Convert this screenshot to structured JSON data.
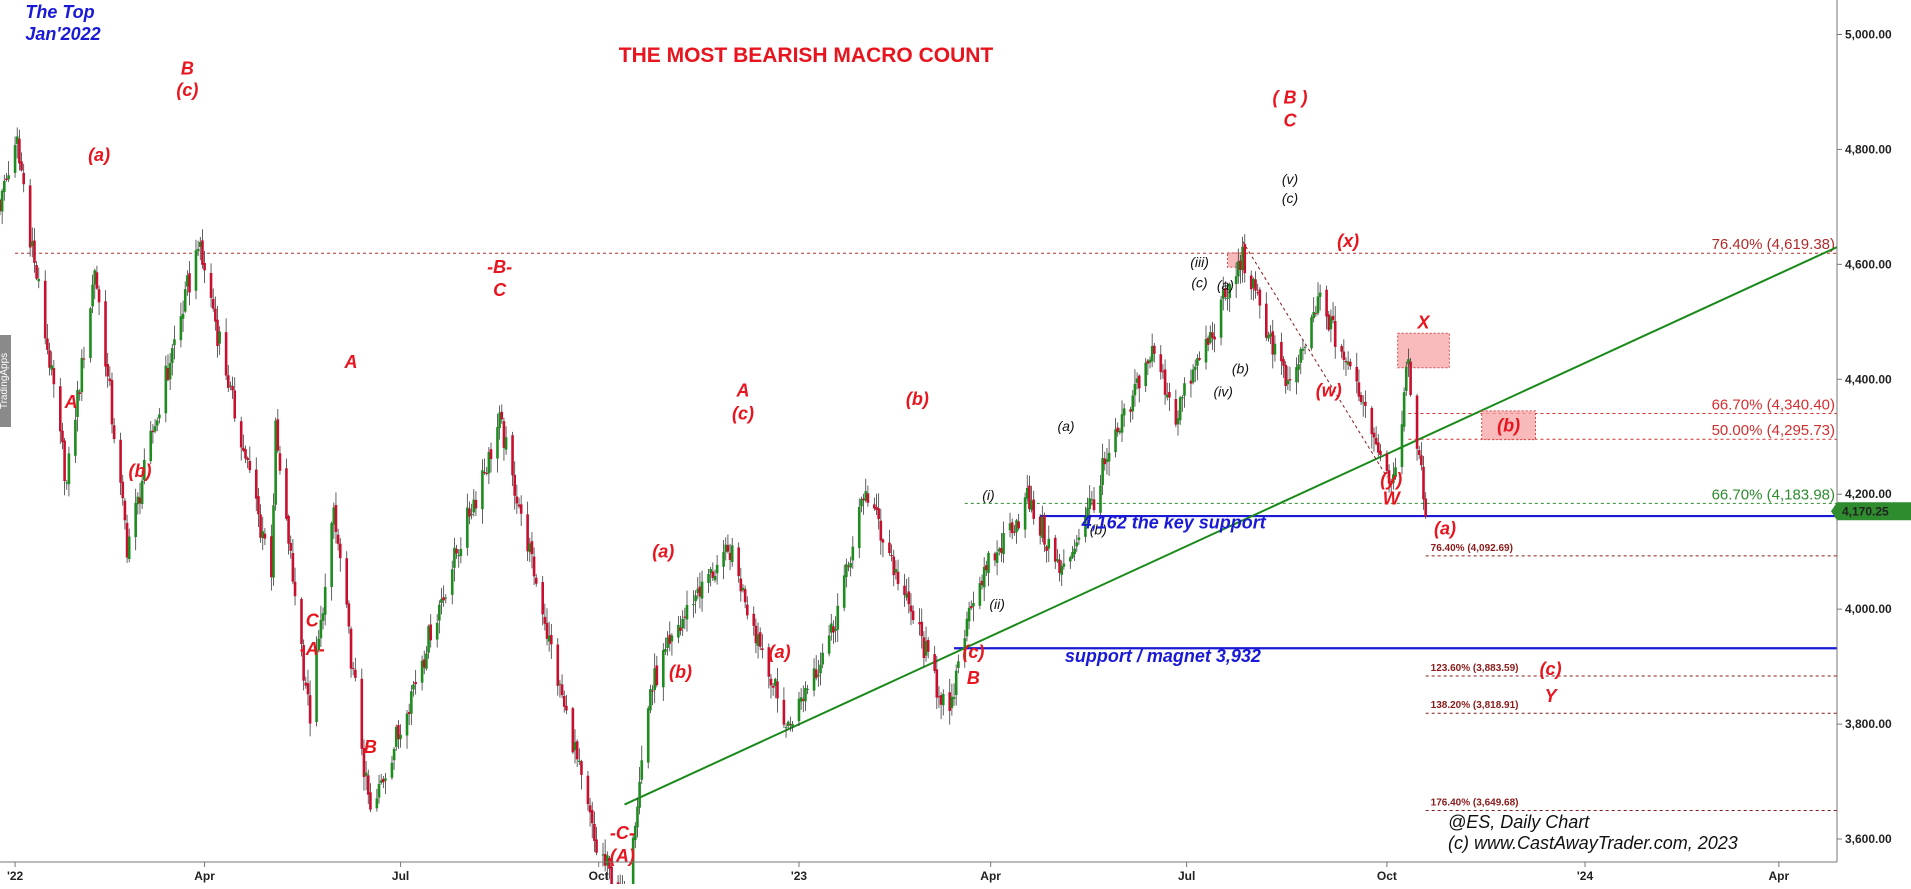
{
  "chart_data": {
    "type": "candlestick",
    "title": "THE MOST BEARISH MACRO COUNT",
    "instrument": "@ES",
    "timeframe_label": "@ES,  Daily Chart",
    "copyright": "(c) www.CastAwayTrader.com, 2023",
    "top_label": [
      "The Top",
      "Jan'2022"
    ],
    "y_axis": {
      "min": 3560,
      "max": 5060,
      "ticks": [
        "5,000.00",
        "4,800.00",
        "4,600.00",
        "4,400.00",
        "4,200.00",
        "4,000.00",
        "3,800.00",
        "3,600.00"
      ]
    },
    "x_axis": {
      "start": "2021-12-27",
      "end": "2024-04-28",
      "ticks": [
        {
          "date": "2022-01-03",
          "label": "'22"
        },
        {
          "date": "2022-04-01",
          "label": "Apr"
        },
        {
          "date": "2022-07-01",
          "label": "Jul"
        },
        {
          "date": "2022-10-01",
          "label": "Oct"
        },
        {
          "date": "2023-01-02",
          "label": "'23"
        },
        {
          "date": "2023-04-01",
          "label": "Apr"
        },
        {
          "date": "2023-07-01",
          "label": "Jul"
        },
        {
          "date": "2023-10-02",
          "label": "Oct"
        },
        {
          "date": "2024-01-02",
          "label": "'24"
        },
        {
          "date": "2024-04-01",
          "label": "Apr"
        }
      ]
    },
    "last_price": "4,170.25",
    "anchors": [
      [
        "2021-12-27",
        4750
      ],
      [
        "2022-01-04",
        4808
      ],
      [
        "2022-01-27",
        4280
      ],
      [
        "2022-02-09",
        4580
      ],
      [
        "2022-02-24",
        4100
      ],
      [
        "2022-03-29",
        4636
      ],
      [
        "2022-05-02",
        4120
      ],
      [
        "2022-05-04",
        4300
      ],
      [
        "2022-05-20",
        3830
      ],
      [
        "2022-05-31",
        4170
      ],
      [
        "2022-06-17",
        3640
      ],
      [
        "2022-08-16",
        4325
      ],
      [
        "2022-09-30",
        3590
      ],
      [
        "2022-10-13",
        3500
      ],
      [
        "2022-10-25",
        3890
      ],
      [
        "2022-11-15",
        4020
      ],
      [
        "2022-12-01",
        4100
      ],
      [
        "2022-12-28",
        3800
      ],
      [
        "2023-01-18",
        3970
      ],
      [
        "2023-02-02",
        4208
      ],
      [
        "2023-03-13",
        3808
      ],
      [
        "2023-03-22",
        4010
      ],
      [
        "2023-04-18",
        4190
      ],
      [
        "2023-05-04",
        4060
      ],
      [
        "2023-06-15",
        4460
      ],
      [
        "2023-06-26",
        4340
      ],
      [
        "2023-07-27",
        4610
      ],
      [
        "2023-08-18",
        4390
      ],
      [
        "2023-09-01",
        4550
      ],
      [
        "2023-09-21",
        4360
      ],
      [
        "2023-10-04",
        4220
      ],
      [
        "2023-10-12",
        4420
      ],
      [
        "2023-10-20",
        4170
      ]
    ],
    "overlay_anchors": [
      [
        "2021-12-27",
        4712
      ],
      [
        "2022-01-04",
        4808
      ],
      [
        "2022-01-27",
        4222
      ],
      [
        "2022-02-09",
        4595
      ],
      [
        "2022-02-24",
        4114
      ],
      [
        "2022-03-29",
        4637
      ],
      [
        "2022-05-02",
        4062
      ],
      [
        "2022-05-04",
        4303
      ],
      [
        "2022-05-20",
        3810
      ],
      [
        "2022-05-31",
        4170
      ],
      [
        "2022-06-17",
        3636
      ],
      [
        "2022-08-16",
        4325
      ],
      [
        "2022-09-30",
        3585
      ],
      [
        "2022-10-13",
        3491
      ],
      [
        "2022-10-25",
        3860
      ],
      [
        "2022-11-15",
        4028
      ],
      [
        "2022-12-01",
        4100
      ],
      [
        "2022-12-28",
        3790
      ],
      [
        "2023-01-18",
        3970
      ],
      [
        "2023-02-02",
        4208
      ],
      [
        "2023-03-13",
        3808
      ],
      [
        "2023-03-22",
        4010
      ],
      [
        "2023-04-18",
        4190
      ],
      [
        "2023-05-04",
        4060
      ],
      [
        "2023-06-15",
        4450
      ],
      [
        "2023-06-26",
        4340
      ],
      [
        "2023-07-27",
        4608
      ],
      [
        "2023-08-18",
        4380
      ],
      [
        "2023-09-01",
        4540
      ],
      [
        "2023-09-21",
        4360
      ],
      [
        "2023-10-04",
        4220
      ],
      [
        "2023-10-12",
        4420
      ],
      [
        "2023-10-20",
        4170
      ]
    ],
    "levels": [
      {
        "id": "fib-76-4",
        "value": 4619.38,
        "label": "76.40% (4,619.38)",
        "color": "#b02b2b",
        "style": "dotted",
        "from": "2022-01-03",
        "size": "big"
      },
      {
        "id": "fib-66-7-upper",
        "value": 4340.4,
        "label": "66.70% (4,340.40)",
        "color": "#d32f2f",
        "style": "dotted",
        "from": "2023-10-12",
        "size": "big"
      },
      {
        "id": "fib-50",
        "value": 4295.73,
        "label": "50.00% (4,295.73)",
        "color": "#d32f2f",
        "style": "dotted",
        "from": "2023-10-12",
        "size": "big"
      },
      {
        "id": "fib-66-7-lower",
        "value": 4183.98,
        "label": "66.70% (4,183.98)",
        "color": "#2e8b2e",
        "style": "dotted",
        "from": "2023-03-20",
        "size": "big"
      },
      {
        "id": "key-support",
        "value": 4162,
        "label": "",
        "color": "#1a1ad6",
        "style": "solid",
        "from": "2023-04-24",
        "size": "none"
      },
      {
        "id": "fib-76-4-lower",
        "value": 4092.69,
        "label": "76.40% (4,092.69)",
        "color": "#8b1a1a",
        "style": "dotted",
        "from": "2023-10-20",
        "size": "small"
      },
      {
        "id": "support-magnet",
        "value": 3932,
        "label": "",
        "color": "#1a1ad6",
        "style": "solid",
        "from": "2023-03-15",
        "size": "none"
      },
      {
        "id": "fib-123-6",
        "value": 3883.59,
        "label": "123.60% (3,883.59)",
        "color": "#8b1a1a",
        "style": "dotted",
        "from": "2023-10-20",
        "size": "small"
      },
      {
        "id": "fib-138-2",
        "value": 3818.91,
        "label": "138.20% (3,818.91)",
        "color": "#8b1a1a",
        "style": "dotted",
        "from": "2023-10-20",
        "size": "small"
      },
      {
        "id": "fib-176-4",
        "value": 3649.68,
        "label": "176.40% (3,649.68)",
        "color": "#8b1a1a",
        "style": "dotted",
        "from": "2023-10-20",
        "size": "small"
      }
    ],
    "trendline": {
      "from": [
        "2022-10-13",
        3660
      ],
      "to": [
        "2024-04-28",
        4630
      ],
      "color": "#1a8a1a"
    },
    "dashed_line": {
      "from": [
        "2023-07-27",
        4640
      ],
      "to": [
        "2023-10-02",
        4230
      ],
      "color": "#8b1a1a"
    },
    "boxes": [
      {
        "id": "box-x",
        "x0": "2023-10-07",
        "x1": "2023-10-31",
        "y0": 4420,
        "y1": 4480,
        "label": "X"
      },
      {
        "id": "box-b",
        "x0": "2023-11-15",
        "x1": "2023-12-10",
        "y0": 4295,
        "y1": 4345,
        "label": "(b)"
      },
      {
        "id": "box-top",
        "x0": "2023-07-20",
        "x1": "2023-07-28",
        "y0": 4595,
        "y1": 4620,
        "label": ""
      }
    ],
    "annotations": [
      {
        "text": "B",
        "date": "2022-03-24",
        "price": 4930,
        "style": "red"
      },
      {
        "text": "(c)",
        "date": "2022-03-24",
        "price": 4893,
        "style": "red"
      },
      {
        "text": "(a)",
        "date": "2022-02-11",
        "price": 4780,
        "style": "red"
      },
      {
        "text": "A",
        "date": "2022-01-29",
        "price": 4350,
        "style": "red"
      },
      {
        "text": "(b)",
        "date": "2022-03-02",
        "price": 4230,
        "style": "red"
      },
      {
        "text": "A",
        "date": "2022-06-08",
        "price": 4420,
        "style": "red"
      },
      {
        "text": "C",
        "date": "2022-05-21",
        "price": 3970,
        "style": "red"
      },
      {
        "text": "-A-",
        "date": "2022-05-21",
        "price": 3920,
        "style": "red"
      },
      {
        "text": "B",
        "date": "2022-06-17",
        "price": 3750,
        "style": "red"
      },
      {
        "text": "-B-",
        "date": "2022-08-16",
        "price": 4585,
        "style": "red"
      },
      {
        "text": "C",
        "date": "2022-08-16",
        "price": 4545,
        "style": "red"
      },
      {
        "text": "-C-",
        "date": "2022-10-12",
        "price": 3600,
        "style": "red"
      },
      {
        "text": "(A)",
        "date": "2022-10-12",
        "price": 3560,
        "style": "red"
      },
      {
        "text": "(a)",
        "date": "2022-10-31",
        "price": 4090,
        "style": "red"
      },
      {
        "text": "(b)",
        "date": "2022-11-08",
        "price": 3880,
        "style": "red"
      },
      {
        "text": "A",
        "date": "2022-12-07",
        "price": 4370,
        "style": "red"
      },
      {
        "text": "(c)",
        "date": "2022-12-07",
        "price": 4330,
        "style": "red"
      },
      {
        "text": "(a)",
        "date": "2022-12-24",
        "price": 3915,
        "style": "red"
      },
      {
        "text": "(b)",
        "date": "2023-02-26",
        "price": 4355,
        "style": "red"
      },
      {
        "text": "(c)",
        "date": "2023-03-24",
        "price": 3915,
        "style": "red"
      },
      {
        "text": "B",
        "date": "2023-03-24",
        "price": 3870,
        "style": "red"
      },
      {
        "text": "(i)",
        "date": "2023-03-31",
        "price": 4190,
        "style": "black"
      },
      {
        "text": "(ii)",
        "date": "2023-04-04",
        "price": 4000,
        "style": "black"
      },
      {
        "text": "(a)",
        "date": "2023-05-06",
        "price": 4310,
        "style": "black"
      },
      {
        "text": "(b)",
        "date": "2023-05-21",
        "price": 4130,
        "style": "black"
      },
      {
        "text": "(iii)",
        "date": "2023-07-07",
        "price": 4595,
        "style": "black"
      },
      {
        "text": "(c)",
        "date": "2023-07-07",
        "price": 4560,
        "style": "black"
      },
      {
        "text": "(a)",
        "date": "2023-07-19",
        "price": 4555,
        "style": "black"
      },
      {
        "text": "(b)",
        "date": "2023-07-26",
        "price": 4410,
        "style": "black"
      },
      {
        "text": "(iv)",
        "date": "2023-07-18",
        "price": 4370,
        "style": "black"
      },
      {
        "text": "(v)",
        "date": "2023-08-18",
        "price": 4740,
        "style": "black"
      },
      {
        "text": "(c)",
        "date": "2023-08-18",
        "price": 4707,
        "style": "black"
      },
      {
        "text": "( B )",
        "date": "2023-08-18",
        "price": 4880,
        "style": "red"
      },
      {
        "text": "C",
        "date": "2023-08-18",
        "price": 4840,
        "style": "red"
      },
      {
        "text": "(x)",
        "date": "2023-09-14",
        "price": 4630,
        "style": "red"
      },
      {
        "text": "(w)",
        "date": "2023-09-05",
        "price": 4370,
        "style": "red"
      },
      {
        "text": "(y)",
        "date": "2023-10-04",
        "price": 4215,
        "style": "red"
      },
      {
        "text": "W",
        "date": "2023-10-04",
        "price": 4182,
        "style": "red"
      },
      {
        "text": "(a)",
        "date": "2023-10-29",
        "price": 4130,
        "style": "red"
      },
      {
        "text": "(c)",
        "date": "2023-12-17",
        "price": 3885,
        "style": "red"
      },
      {
        "text": "Y",
        "date": "2023-12-17",
        "price": 3838,
        "style": "red"
      }
    ],
    "blue_annotations": [
      {
        "text": "4,162 the key support",
        "date": "2023-06-25",
        "price": 4140
      },
      {
        "text": "support / magnet 3,932",
        "date": "2023-06-20",
        "price": 3908
      }
    ],
    "sidebar_label": "TradingApps"
  }
}
